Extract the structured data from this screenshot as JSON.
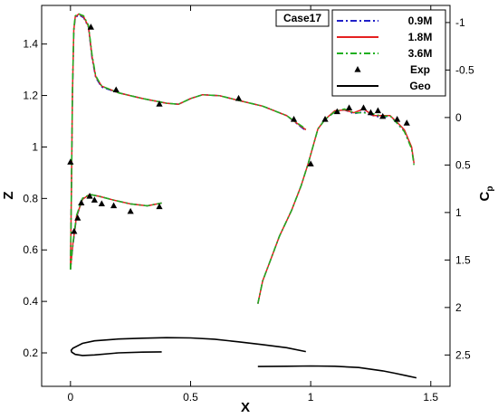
{
  "chart_data": {
    "type": "line",
    "case_label": "Case17",
    "xlabel": "X",
    "ylabel_left": "Z",
    "ylabel_right": "C",
    "ylabel_right_sub": "p",
    "xlim": [
      -0.12,
      1.58
    ],
    "zlim": [
      0.07,
      1.55
    ],
    "cplim": [
      2.83,
      -1.18
    ],
    "x_ticks": [
      "0",
      "0.5",
      "1",
      "1.5"
    ],
    "z_ticks": [
      "0.2",
      "0.4",
      "0.6",
      "0.8",
      "1",
      "1.2",
      "1.4"
    ],
    "cp_ticks": [
      "-1",
      "-0.5",
      "0",
      "0.5",
      "1",
      "1.5",
      "2",
      "2.5"
    ],
    "legend_placement": "top-right",
    "legend": [
      {
        "label": "0.9M",
        "color": "#2020c8",
        "style": "dashdot"
      },
      {
        "label": "1.8M",
        "color": "#e52020",
        "style": "solid"
      },
      {
        "label": "3.6M",
        "color": "#20b020",
        "style": "dashdot"
      },
      {
        "label": "Exp",
        "color": "#000000",
        "style": "marker"
      },
      {
        "label": "Geo",
        "color": "#000000",
        "style": "solid"
      }
    ],
    "cp_series": [
      {
        "name": "0.9M",
        "color": "#2020c8",
        "segments": [
          [
            [
              0.0,
              1.6
            ],
            [
              0.004,
              0.8
            ],
            [
              0.008,
              -0.2
            ],
            [
              0.014,
              -0.9
            ],
            [
              0.02,
              -1.05
            ],
            [
              0.035,
              -1.08
            ],
            [
              0.055,
              -1.05
            ],
            [
              0.075,
              -0.95
            ],
            [
              0.09,
              -0.62
            ],
            [
              0.105,
              -0.42
            ],
            [
              0.13,
              -0.32
            ],
            [
              0.2,
              -0.26
            ],
            [
              0.3,
              -0.2
            ],
            [
              0.4,
              -0.15
            ],
            [
              0.45,
              -0.14
            ],
            [
              0.5,
              -0.2
            ],
            [
              0.55,
              -0.24
            ],
            [
              0.62,
              -0.23
            ],
            [
              0.7,
              -0.18
            ],
            [
              0.8,
              -0.12
            ],
            [
              0.9,
              -0.02
            ],
            [
              0.98,
              0.14
            ]
          ],
          [
            [
              0.0,
              1.6
            ],
            [
              0.01,
              1.35
            ],
            [
              0.025,
              1.05
            ],
            [
              0.05,
              0.86
            ],
            [
              0.08,
              0.81
            ],
            [
              0.12,
              0.83
            ],
            [
              0.18,
              0.87
            ],
            [
              0.25,
              0.91
            ],
            [
              0.32,
              0.93
            ],
            [
              0.38,
              0.9
            ]
          ],
          [
            [
              0.78,
              1.96
            ],
            [
              0.8,
              1.72
            ],
            [
              0.83,
              1.52
            ],
            [
              0.87,
              1.25
            ],
            [
              0.92,
              0.98
            ],
            [
              0.96,
              0.72
            ],
            [
              0.99,
              0.48
            ],
            [
              1.01,
              0.3
            ],
            [
              1.03,
              0.12
            ],
            [
              1.06,
              0.02
            ],
            [
              1.1,
              -0.06
            ],
            [
              1.14,
              -0.08
            ],
            [
              1.18,
              -0.04
            ],
            [
              1.22,
              -0.06
            ],
            [
              1.26,
              -0.02
            ],
            [
              1.3,
              0.0
            ],
            [
              1.33,
              -0.02
            ],
            [
              1.36,
              0.06
            ],
            [
              1.39,
              0.14
            ],
            [
              1.42,
              0.32
            ],
            [
              1.43,
              0.48
            ]
          ]
        ]
      },
      {
        "name": "1.8M",
        "color": "#e52020",
        "segments": [
          [
            [
              0.0,
              1.6
            ],
            [
              0.004,
              0.75
            ],
            [
              0.008,
              -0.25
            ],
            [
              0.014,
              -0.92
            ],
            [
              0.02,
              -1.06
            ],
            [
              0.035,
              -1.09
            ],
            [
              0.055,
              -1.06
            ],
            [
              0.075,
              -0.96
            ],
            [
              0.09,
              -0.64
            ],
            [
              0.105,
              -0.43
            ],
            [
              0.13,
              -0.33
            ],
            [
              0.2,
              -0.26
            ],
            [
              0.3,
              -0.2
            ],
            [
              0.4,
              -0.15
            ],
            [
              0.45,
              -0.14
            ],
            [
              0.5,
              -0.2
            ],
            [
              0.55,
              -0.24
            ],
            [
              0.62,
              -0.23
            ],
            [
              0.7,
              -0.18
            ],
            [
              0.8,
              -0.12
            ],
            [
              0.9,
              -0.02
            ],
            [
              0.98,
              0.13
            ]
          ],
          [
            [
              0.0,
              1.6
            ],
            [
              0.01,
              1.33
            ],
            [
              0.025,
              1.04
            ],
            [
              0.05,
              0.86
            ],
            [
              0.08,
              0.81
            ],
            [
              0.12,
              0.83
            ],
            [
              0.18,
              0.87
            ],
            [
              0.25,
              0.91
            ],
            [
              0.32,
              0.93
            ],
            [
              0.38,
              0.9
            ]
          ],
          [
            [
              0.78,
              1.96
            ],
            [
              0.8,
              1.72
            ],
            [
              0.83,
              1.52
            ],
            [
              0.87,
              1.25
            ],
            [
              0.92,
              0.98
            ],
            [
              0.96,
              0.72
            ],
            [
              0.99,
              0.48
            ],
            [
              1.01,
              0.3
            ],
            [
              1.03,
              0.12
            ],
            [
              1.06,
              0.02
            ],
            [
              1.1,
              -0.07
            ],
            [
              1.14,
              -0.08
            ],
            [
              1.18,
              -0.05
            ],
            [
              1.22,
              -0.09
            ],
            [
              1.26,
              -0.02
            ],
            [
              1.3,
              -0.02
            ],
            [
              1.33,
              -0.02
            ],
            [
              1.36,
              0.05
            ],
            [
              1.39,
              0.13
            ],
            [
              1.42,
              0.31
            ],
            [
              1.43,
              0.48
            ]
          ]
        ]
      },
      {
        "name": "3.6M",
        "color": "#20b020",
        "segments": [
          [
            [
              0.0,
              1.6
            ],
            [
              0.004,
              0.7
            ],
            [
              0.008,
              -0.3
            ],
            [
              0.014,
              -0.94
            ],
            [
              0.02,
              -1.07
            ],
            [
              0.035,
              -1.09
            ],
            [
              0.055,
              -1.07
            ],
            [
              0.075,
              -0.97
            ],
            [
              0.09,
              -0.66
            ],
            [
              0.105,
              -0.44
            ],
            [
              0.13,
              -0.33
            ],
            [
              0.2,
              -0.26
            ],
            [
              0.3,
              -0.2
            ],
            [
              0.4,
              -0.15
            ],
            [
              0.45,
              -0.14
            ],
            [
              0.5,
              -0.2
            ],
            [
              0.55,
              -0.24
            ],
            [
              0.62,
              -0.23
            ],
            [
              0.7,
              -0.18
            ],
            [
              0.8,
              -0.12
            ],
            [
              0.9,
              -0.02
            ],
            [
              0.98,
              0.12
            ]
          ],
          [
            [
              0.0,
              1.6
            ],
            [
              0.01,
              1.32
            ],
            [
              0.025,
              1.03
            ],
            [
              0.05,
              0.85
            ],
            [
              0.08,
              0.81
            ],
            [
              0.12,
              0.83
            ],
            [
              0.18,
              0.87
            ],
            [
              0.25,
              0.91
            ],
            [
              0.32,
              0.93
            ],
            [
              0.38,
              0.9
            ]
          ],
          [
            [
              0.78,
              1.96
            ],
            [
              0.8,
              1.72
            ],
            [
              0.83,
              1.52
            ],
            [
              0.87,
              1.25
            ],
            [
              0.92,
              0.98
            ],
            [
              0.96,
              0.72
            ],
            [
              0.99,
              0.48
            ],
            [
              1.01,
              0.3
            ],
            [
              1.03,
              0.12
            ],
            [
              1.06,
              0.02
            ],
            [
              1.1,
              -0.06
            ],
            [
              1.14,
              -0.09
            ],
            [
              1.18,
              -0.05
            ],
            [
              1.22,
              -0.05
            ],
            [
              1.26,
              -0.04
            ],
            [
              1.3,
              -0.01
            ],
            [
              1.33,
              -0.02
            ],
            [
              1.36,
              0.06
            ],
            [
              1.39,
              0.15
            ],
            [
              1.42,
              0.33
            ],
            [
              1.43,
              0.5
            ]
          ]
        ]
      }
    ],
    "exp_points": [
      [
        0.0,
        0.47
      ],
      [
        0.015,
        1.2
      ],
      [
        0.03,
        1.06
      ],
      [
        0.045,
        0.9
      ],
      [
        0.08,
        0.83
      ],
      [
        0.1,
        0.87
      ],
      [
        0.13,
        0.91
      ],
      [
        0.18,
        0.93
      ],
      [
        0.25,
        0.99
      ],
      [
        0.37,
        0.94
      ],
      [
        0.085,
        -0.95
      ],
      [
        0.19,
        -0.29
      ],
      [
        0.37,
        -0.14
      ],
      [
        0.7,
        -0.2
      ],
      [
        0.93,
        0.02
      ],
      [
        1.0,
        0.49
      ],
      [
        1.06,
        0.02
      ],
      [
        1.11,
        -0.06
      ],
      [
        1.16,
        -0.1
      ],
      [
        1.22,
        -0.1
      ],
      [
        1.25,
        -0.05
      ],
      [
        1.28,
        -0.07
      ],
      [
        1.3,
        -0.01
      ],
      [
        1.36,
        0.02
      ],
      [
        1.4,
        0.06
      ]
    ],
    "geo": {
      "name": "Geo",
      "color": "#000000",
      "segments": [
        [
          [
            0.38,
            0.204
          ],
          [
            0.3,
            0.203
          ],
          [
            0.2,
            0.2
          ],
          [
            0.1,
            0.192
          ],
          [
            0.05,
            0.19
          ],
          [
            0.02,
            0.194
          ],
          [
            0.005,
            0.203
          ],
          [
            0.003,
            0.21
          ],
          [
            0.01,
            0.218
          ],
          [
            0.05,
            0.237
          ],
          [
            0.1,
            0.247
          ],
          [
            0.2,
            0.254
          ],
          [
            0.3,
            0.257
          ],
          [
            0.4,
            0.259
          ],
          [
            0.5,
            0.258
          ],
          [
            0.6,
            0.253
          ],
          [
            0.7,
            0.243
          ],
          [
            0.8,
            0.232
          ],
          [
            0.9,
            0.22
          ],
          [
            0.98,
            0.205
          ]
        ],
        [
          [
            0.78,
            0.147
          ],
          [
            0.9,
            0.148
          ],
          [
            1.0,
            0.149
          ],
          [
            1.1,
            0.148
          ],
          [
            1.2,
            0.143
          ],
          [
            1.3,
            0.13
          ],
          [
            1.35,
            0.121
          ],
          [
            1.4,
            0.111
          ],
          [
            1.44,
            0.103
          ]
        ]
      ]
    }
  }
}
